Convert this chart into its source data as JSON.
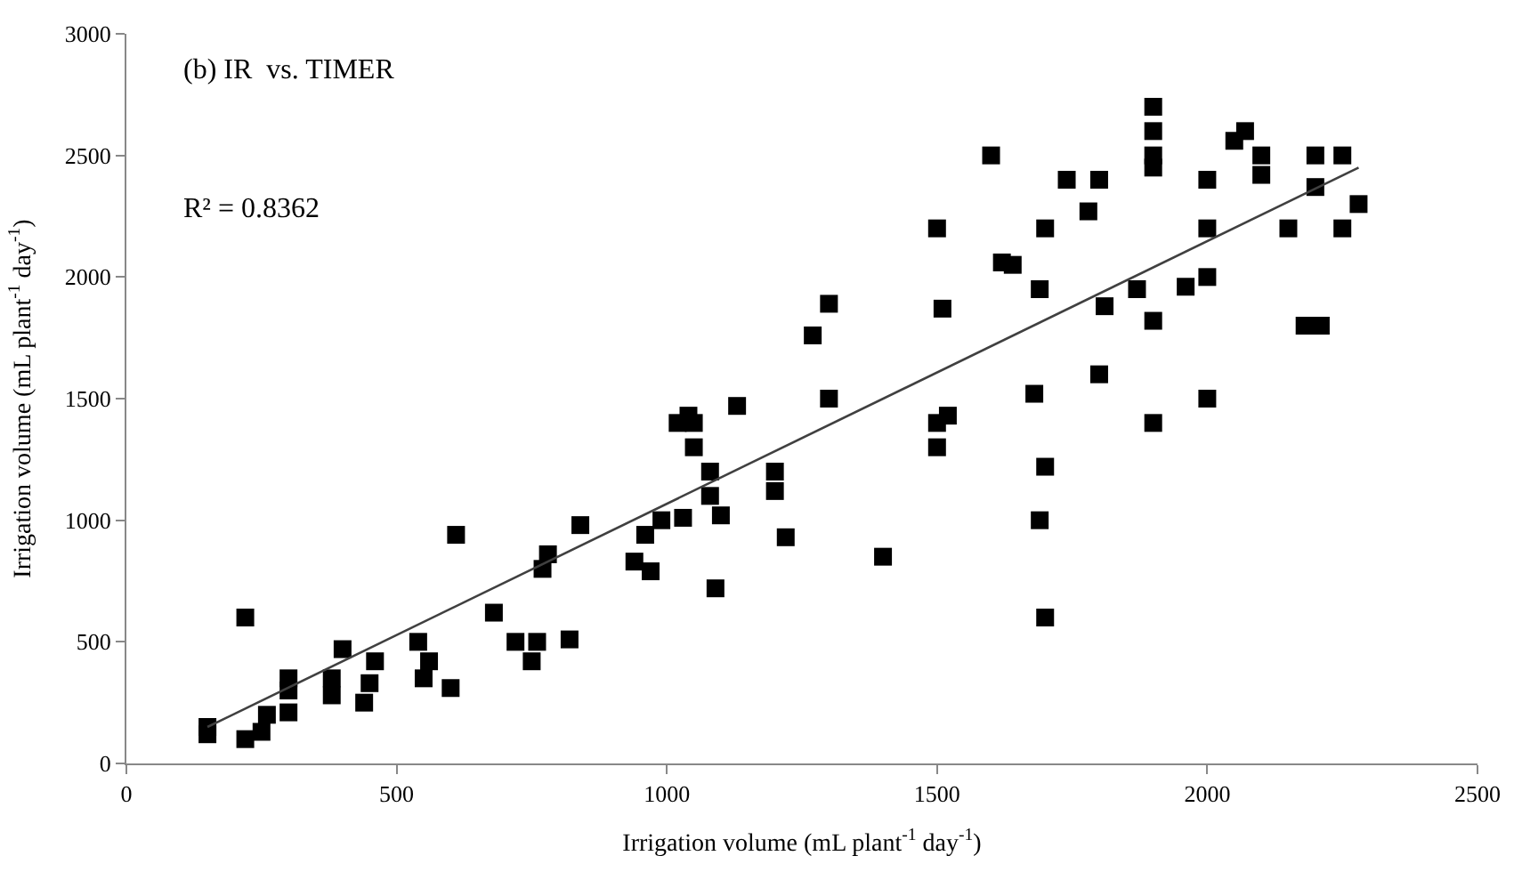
{
  "chart_data": {
    "type": "scatter",
    "xlabel": "Irrigation volume (mL plant$^{-1}$ day$^{-1}$)",
    "ylabel": "Irrigation volume (mL plant$^{-1}$ day$^{-1}$)",
    "annotations": [
      "(b) IR  vs. TIMER",
      "R² = 0.8362"
    ],
    "xlim": [
      0,
      2500
    ],
    "xticks": [
      0,
      500,
      1000,
      1500,
      2000,
      2500
    ],
    "ylim": [
      0,
      3000
    ],
    "yticks": [
      0,
      500,
      1000,
      1500,
      2000,
      2500,
      3000
    ],
    "legend": false,
    "marker": "square",
    "series": [
      {
        "color": "#000000",
        "x": [
          150,
          150,
          220,
          220,
          250,
          260,
          300,
          300,
          300,
          380,
          380,
          400,
          440,
          450,
          460,
          540,
          550,
          560,
          600,
          610,
          680,
          720,
          750,
          760,
          770,
          780,
          820,
          840,
          940,
          960,
          970,
          990,
          1020,
          1030,
          1040,
          1050,
          1050,
          1080,
          1080,
          1090,
          1100,
          1130,
          1200,
          1200,
          1220,
          1270,
          1300,
          1300,
          1400,
          1500,
          1500,
          1500,
          1510,
          1520,
          1600,
          1620,
          1640,
          1680,
          1690,
          1690,
          1700,
          1700,
          1700,
          1740,
          1780,
          1800,
          1800,
          1810,
          1870,
          1900,
          1900,
          1900,
          1900,
          1900,
          1900,
          1960,
          2000,
          2000,
          2000,
          2000,
          2050,
          2070,
          2100,
          2100,
          2150,
          2180,
          2200,
          2200,
          2210,
          2250,
          2250,
          2280
        ],
        "values": [
          150,
          120,
          600,
          100,
          130,
          200,
          350,
          300,
          210,
          350,
          280,
          470,
          250,
          330,
          420,
          500,
          350,
          420,
          310,
          940,
          620,
          500,
          420,
          500,
          800,
          860,
          510,
          980,
          830,
          940,
          790,
          1000,
          1400,
          1010,
          1430,
          1400,
          1300,
          1200,
          1100,
          720,
          1020,
          1470,
          1200,
          1120,
          930,
          1760,
          1890,
          1500,
          850,
          2200,
          1400,
          1300,
          1870,
          1430,
          2500,
          2060,
          2050,
          1520,
          1950,
          1000,
          2200,
          1220,
          600,
          2400,
          2270,
          2400,
          1600,
          1880,
          1950,
          2700,
          2600,
          2500,
          2450,
          1820,
          1400,
          1960,
          2400,
          2200,
          2000,
          1500,
          2560,
          2600,
          2500,
          2420,
          2200,
          1800,
          2500,
          2370,
          1800,
          2500,
          2200,
          2300
        ]
      },
      {
        "type": "line",
        "color": "#404040",
        "marker": "none",
        "x": [
          150,
          2280
        ],
        "values": [
          150,
          2450
        ]
      }
    ]
  }
}
